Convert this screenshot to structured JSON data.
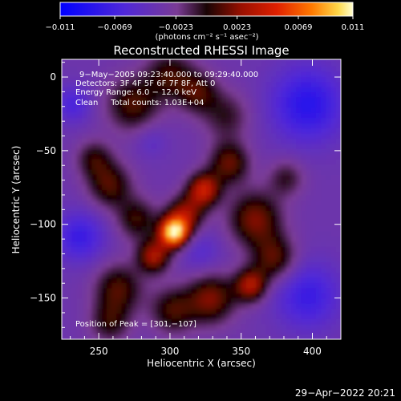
{
  "chart_data": {
    "type": "heatmap",
    "title": "Reconstructed RHESSI Image",
    "xlabel": "Heliocentric X (arcsec)",
    "ylabel": "Heliocentric Y (arcsec)",
    "xlim": [
      224,
      420
    ],
    "ylim": [
      -178,
      12
    ],
    "x_ticks": [
      250,
      300,
      350,
      400
    ],
    "y_ticks": [
      0,
      -50,
      -100,
      -150
    ],
    "colorbar": {
      "min": -0.011,
      "max": 0.011,
      "tick_values": [
        -0.011,
        -0.0069,
        -0.0023,
        0.0023,
        0.0069,
        0.011
      ],
      "tick_labels": [
        "−0.011",
        "−0.0069",
        "−0.0023",
        "0.0023",
        "0.0069",
        "0.011"
      ],
      "units": "(photons cm⁻² s⁻¹ asec⁻²)"
    },
    "annotations": [
      "9−May−2005 09:23:40.000 to 09:29:40.000",
      "Detectors: 3F 4F 5F 6F 7F 8F, Att 0",
      "Energy Range: 6.0 − 12.0 keV",
      "Clean     Total counts: 1.03E+04"
    ],
    "peak_label": "Position of Peak = [301,−107]",
    "components": [
      {
        "x": 301,
        "y": -107,
        "sigma": 7,
        "amp": 0.0135
      },
      {
        "x": 309,
        "y": -95,
        "sigma": 9,
        "amp": 0.006
      },
      {
        "x": 322,
        "y": -78,
        "sigma": 8,
        "amp": 0.0075
      },
      {
        "x": 340,
        "y": -60,
        "sigma": 10,
        "amp": 0.005
      },
      {
        "x": 287,
        "y": -123,
        "sigma": 8,
        "amp": 0.0065
      },
      {
        "x": 275,
        "y": -98,
        "sigma": 10,
        "amp": 0.004
      },
      {
        "x": 256,
        "y": -75,
        "sigma": 11,
        "amp": 0.0045
      },
      {
        "x": 245,
        "y": -57,
        "sigma": 9,
        "amp": 0.0035
      },
      {
        "x": 272,
        "y": -20,
        "sigma": 13,
        "amp": 0.0045
      },
      {
        "x": 298,
        "y": 0,
        "sigma": 12,
        "amp": 0.004
      },
      {
        "x": 318,
        "y": -12,
        "sigma": 10,
        "amp": 0.004
      },
      {
        "x": 338,
        "y": -28,
        "sigma": 12,
        "amp": 0.003
      },
      {
        "x": 358,
        "y": -98,
        "sigma": 13,
        "amp": 0.0055
      },
      {
        "x": 372,
        "y": -125,
        "sigma": 11,
        "amp": 0.0048
      },
      {
        "x": 355,
        "y": -143,
        "sigma": 8,
        "amp": 0.0065
      },
      {
        "x": 327,
        "y": -152,
        "sigma": 12,
        "amp": 0.0055
      },
      {
        "x": 300,
        "y": -160,
        "sigma": 11,
        "amp": 0.0042
      },
      {
        "x": 262,
        "y": -145,
        "sigma": 12,
        "amp": 0.0045
      },
      {
        "x": 256,
        "y": -168,
        "sigma": 10,
        "amp": 0.0035
      },
      {
        "x": 380,
        "y": -70,
        "sigma": 9,
        "amp": 0.003
      },
      {
        "x": 230,
        "y": -20,
        "sigma": 9,
        "amp": -0.003
      },
      {
        "x": 235,
        "y": -110,
        "sigma": 12,
        "amp": -0.004
      },
      {
        "x": 395,
        "y": -20,
        "sigma": 18,
        "amp": -0.005
      },
      {
        "x": 395,
        "y": -150,
        "sigma": 16,
        "amp": -0.004
      },
      {
        "x": 320,
        "y": -120,
        "sigma": 10,
        "amp": -0.002
      },
      {
        "x": 285,
        "y": -45,
        "sigma": 8,
        "amp": -0.0015
      }
    ]
  },
  "timestamp": "29−Apr−2022 20:21"
}
